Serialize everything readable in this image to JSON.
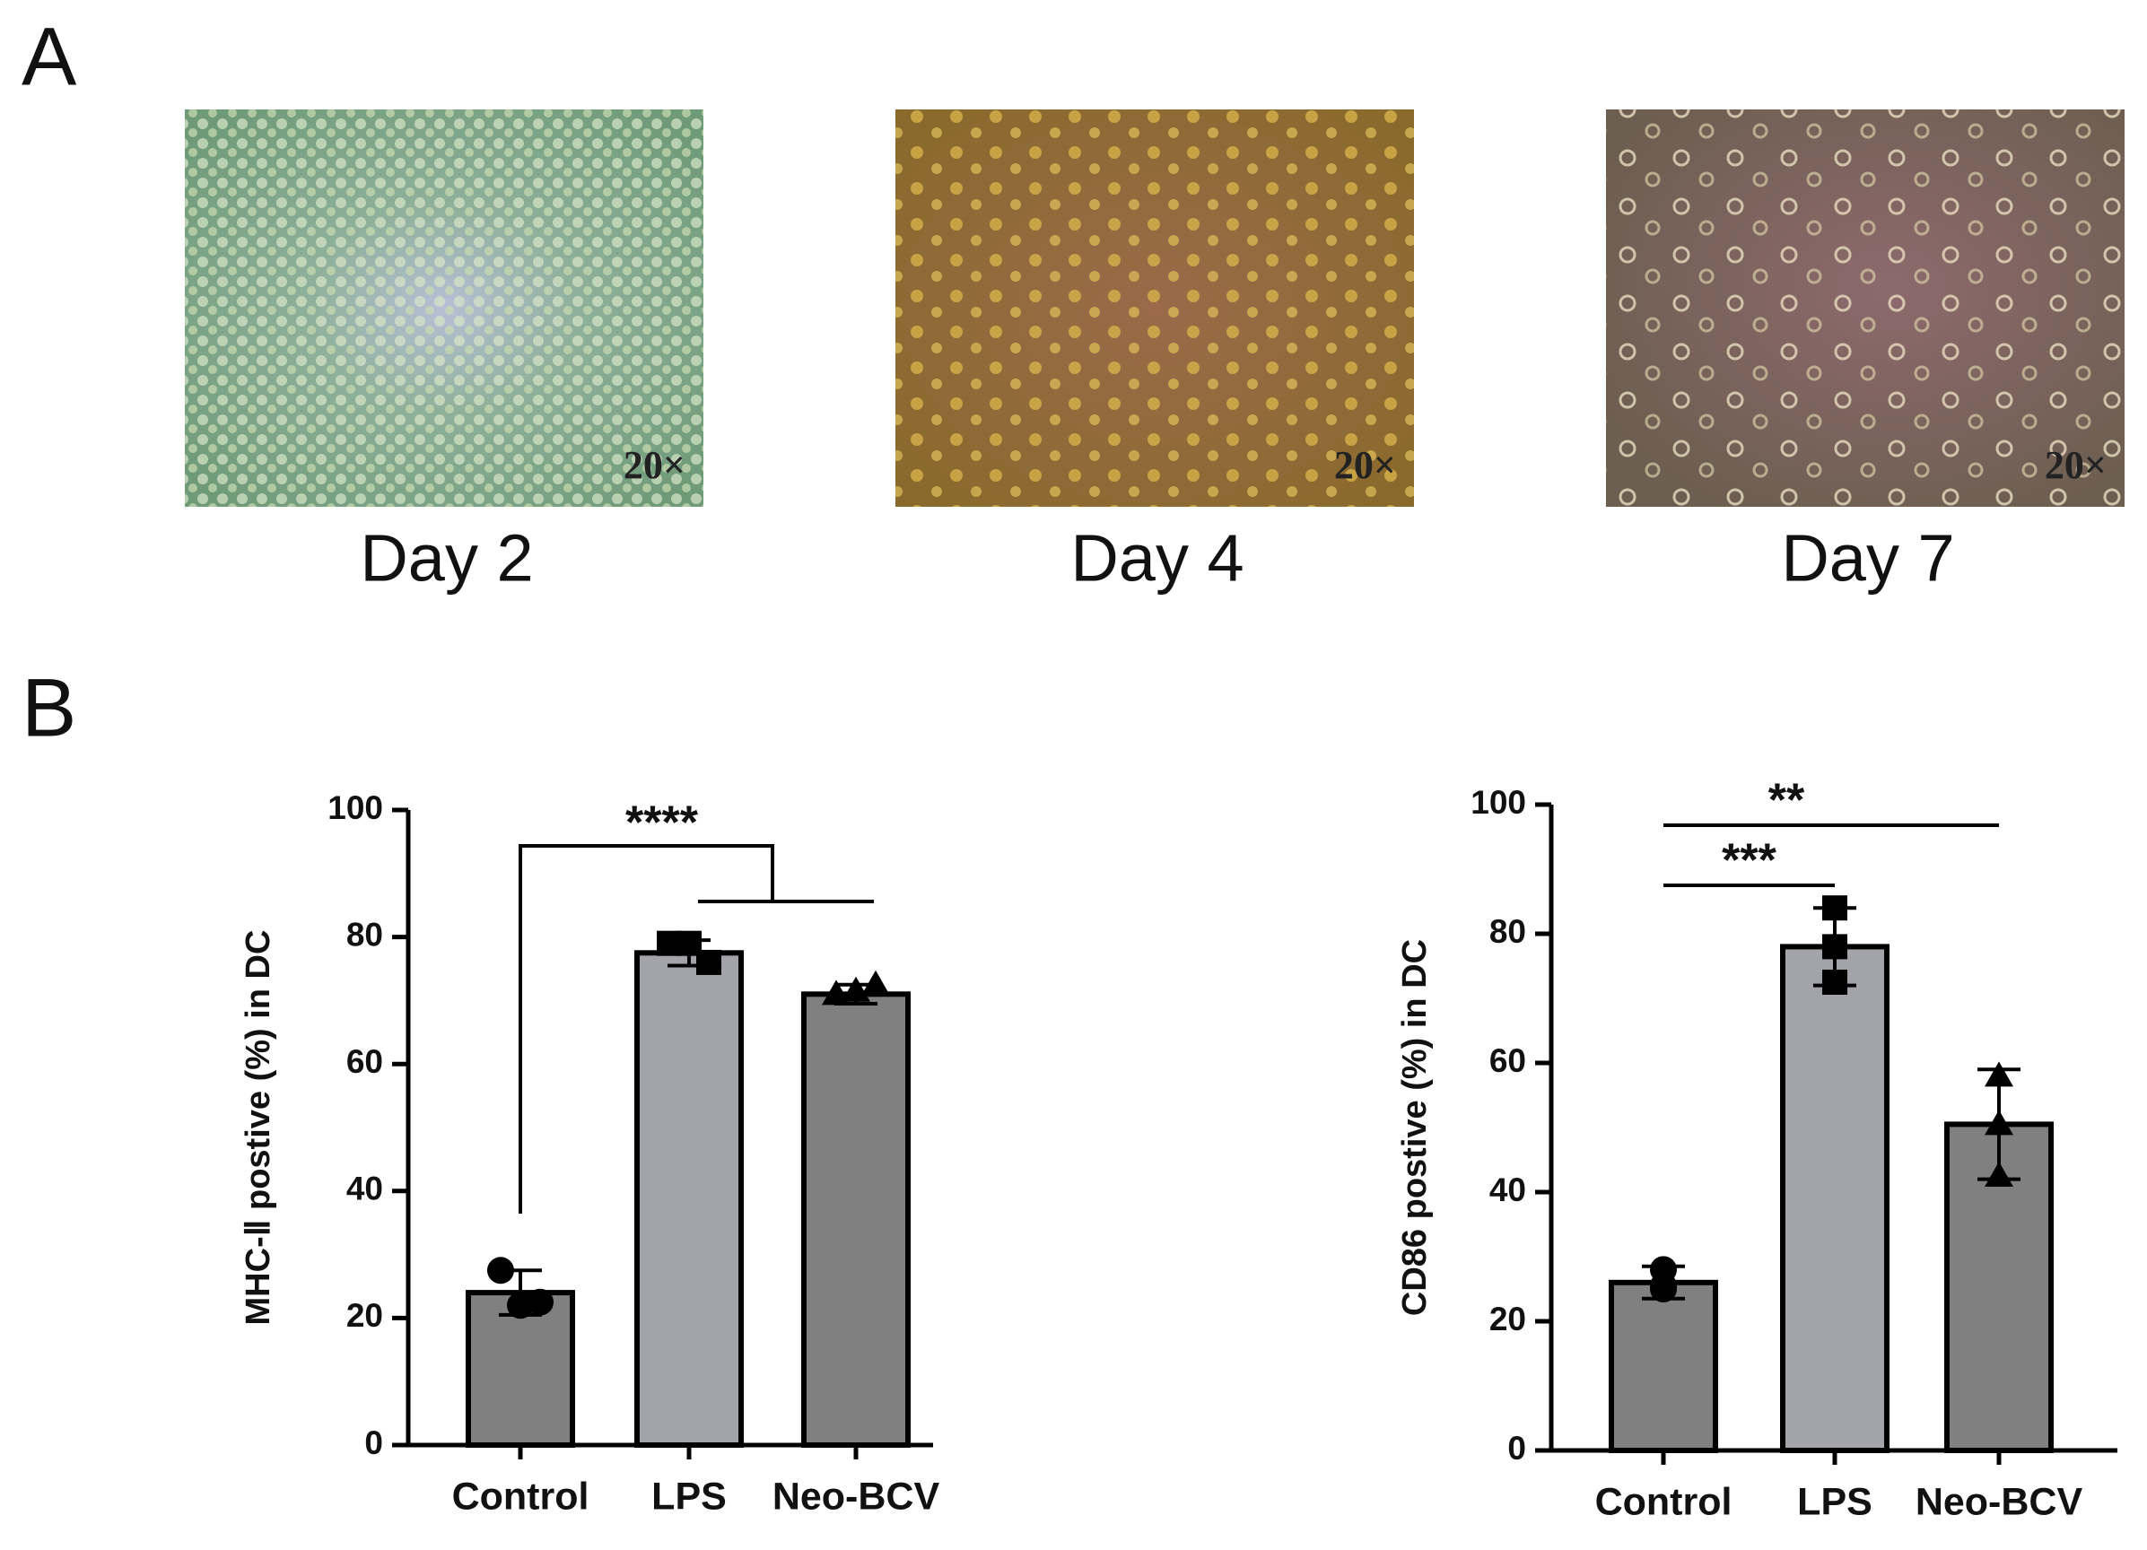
{
  "panel_a": {
    "label": "A",
    "images": [
      {
        "caption": "Day 2",
        "magnification": "20×"
      },
      {
        "caption": "Day 4",
        "magnification": "20×"
      },
      {
        "caption": "Day 7",
        "magnification": "20×"
      }
    ]
  },
  "panel_b": {
    "label": "B"
  },
  "chart_data": [
    {
      "type": "bar",
      "ylabel": "MHC-Ⅱ postive (%) in DC",
      "categories": [
        "Control",
        "LPS",
        "Neo-BCV"
      ],
      "values": [
        24,
        77.5,
        71
      ],
      "errors": [
        3.5,
        2,
        1.5
      ],
      "points": [
        [
          27.5,
          22,
          22.5
        ],
        [
          79,
          79,
          76
        ],
        [
          71,
          71.5,
          72.5
        ]
      ],
      "markers": [
        "circle",
        "square",
        "triangle"
      ],
      "colors": [
        "#808080",
        "#a3a3aa",
        "#808080"
      ],
      "ylim": [
        0,
        100
      ],
      "yticks": [
        0,
        20,
        40,
        60,
        80,
        100
      ],
      "significance": [
        {
          "label": "****",
          "groups": [
            "Control",
            "LPS",
            "Neo-BCV"
          ]
        }
      ]
    },
    {
      "type": "bar",
      "ylabel": "CD86 postive (%) in DC",
      "categories": [
        "Control",
        "LPS",
        "Neo-BCV"
      ],
      "values": [
        26,
        78,
        50.5
      ],
      "errors": [
        2.5,
        6,
        8.5
      ],
      "points": [
        [
          28,
          25,
          25.5
        ],
        [
          84,
          78,
          72.5
        ],
        [
          58,
          50.5,
          42.5
        ]
      ],
      "markers": [
        "circle",
        "square",
        "triangle"
      ],
      "colors": [
        "#808080",
        "#a3a3aa",
        "#808080"
      ],
      "ylim": [
        0,
        100
      ],
      "yticks": [
        0,
        20,
        40,
        60,
        80,
        100
      ],
      "significance": [
        {
          "label": "***",
          "groups": [
            "Control",
            "LPS"
          ]
        },
        {
          "label": "**",
          "groups": [
            "Control",
            "Neo-BCV"
          ]
        }
      ]
    }
  ]
}
